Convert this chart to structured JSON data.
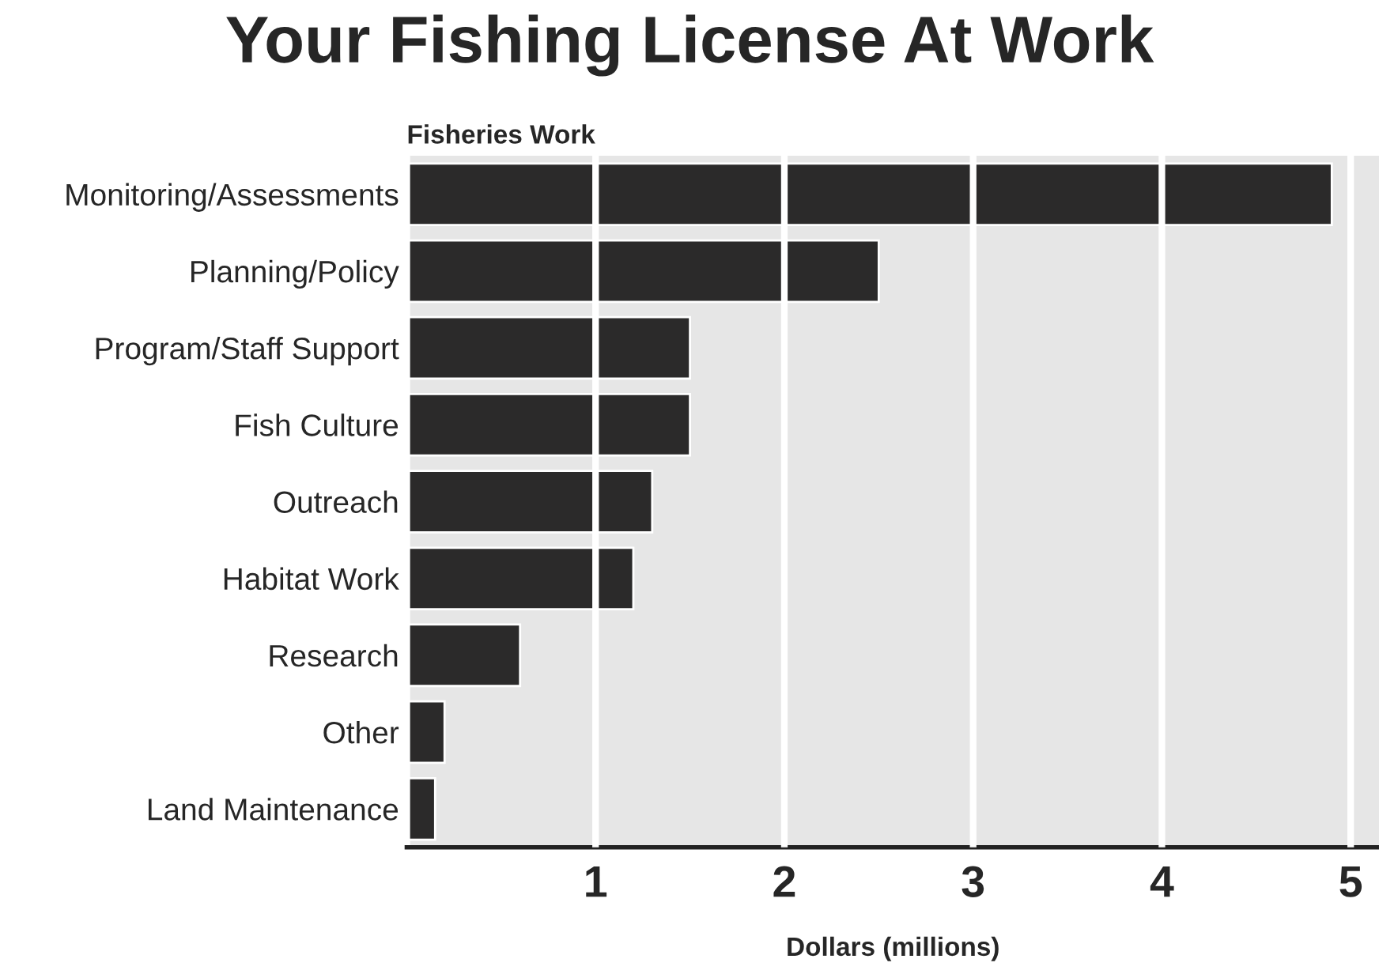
{
  "chart_data": {
    "type": "bar",
    "orientation": "horizontal",
    "title": "Your Fishing License At Work",
    "subtitle": "Fisheries Work",
    "xlabel": "Dollars (millions)",
    "categories": [
      "Monitoring/Assessments",
      "Planning/Policy",
      "Program/Staff Support",
      "Fish Culture",
      "Outreach",
      "Habitat Work",
      "Research",
      "Other",
      "Land Maintenance"
    ],
    "values": [
      4.9,
      2.5,
      1.5,
      1.5,
      1.3,
      1.2,
      0.6,
      0.2,
      0.15
    ],
    "color": "#2b2a2a",
    "xlim": [
      0,
      5.15
    ],
    "xticks": [
      1,
      2,
      3,
      4,
      5
    ],
    "grid": "x"
  }
}
